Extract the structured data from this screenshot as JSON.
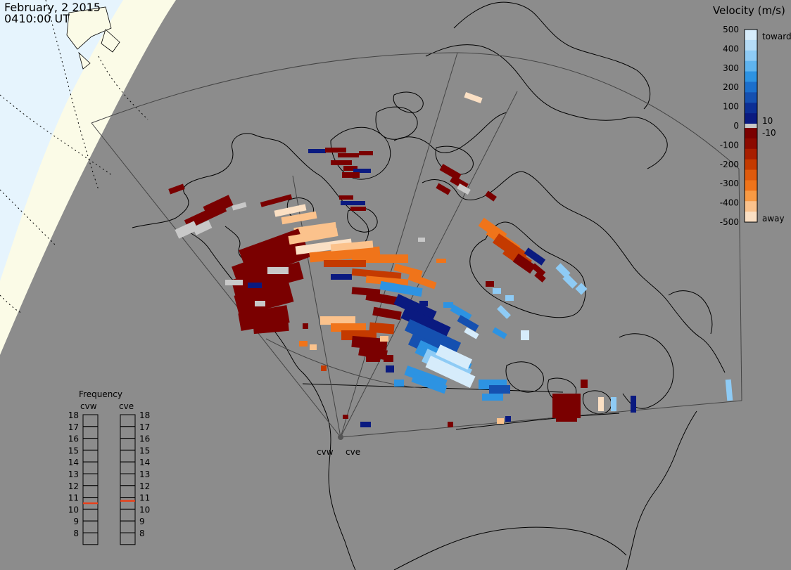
{
  "header": {
    "date": "February, 2 2015",
    "time": "0410:00 UT"
  },
  "colorbar": {
    "title": "Velocity (m/s)",
    "tick_labels": [
      "500",
      "400",
      "300",
      "200",
      "100",
      "0",
      "-100",
      "-200",
      "-300",
      "-400",
      "-500"
    ],
    "inner_labels": [
      "10",
      "-10"
    ],
    "toward_label": "toward",
    "away_label": "away",
    "colors": {
      "toward_ramp": [
        "#d6ecfb",
        "#b5dcf7",
        "#8ecbf5",
        "#5fb4ef",
        "#2d93e2",
        "#1b6fcc",
        "#1550b0",
        "#0c2f95",
        "#0a1a80"
      ],
      "ground_scatter": "#c8c8c8",
      "away_ramp": [
        "#7a0000",
        "#8c0a00",
        "#a81e00",
        "#c43a00",
        "#df5a0c",
        "#f0741a",
        "#f89a44",
        "#fbc28c",
        "#fbe0c4"
      ]
    }
  },
  "frequency_panel": {
    "title": "Frequency",
    "radar_left": "cvw",
    "radar_right": "cve",
    "scale": [
      "18",
      "17",
      "16",
      "15",
      "14",
      "13",
      "12",
      "11",
      "10",
      "9",
      "8"
    ],
    "cvw_mhz": 10.5,
    "cve_mhz": 10.7,
    "marker_color": "#e8401a"
  },
  "radar_site_labels": {
    "west": "cvw",
    "east": "cve"
  },
  "map": {
    "background_color": "#8c8c8c",
    "daylight_color": "#fbfbe7",
    "ocean_day_color": "#e6f4fd",
    "coast_color": "#000000"
  }
}
